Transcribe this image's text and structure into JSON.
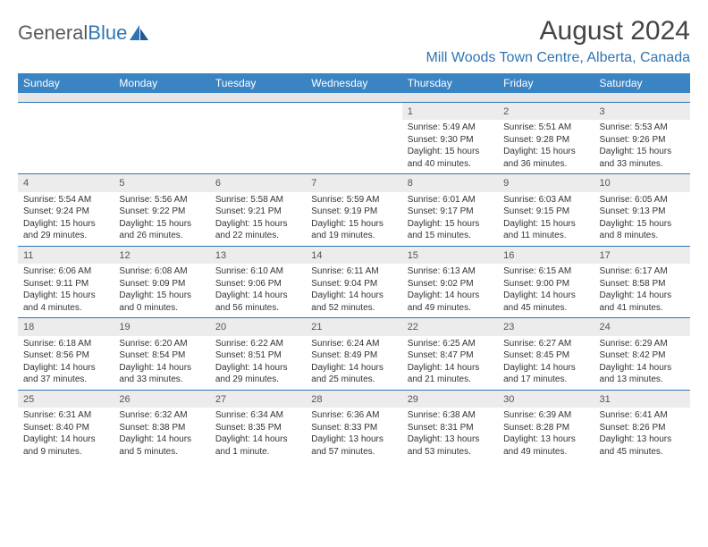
{
  "logo": {
    "text1": "General",
    "text2": "Blue"
  },
  "title": "August 2024",
  "location": "Mill Woods Town Centre, Alberta, Canada",
  "colors": {
    "header_bg": "#3b84c4",
    "accent": "#2f75b5",
    "num_bg": "#ececec",
    "spacer_bg": "#e6e6e6",
    "text": "#333333"
  },
  "dow": [
    "Sunday",
    "Monday",
    "Tuesday",
    "Wednesday",
    "Thursday",
    "Friday",
    "Saturday"
  ],
  "weeks": [
    [
      null,
      null,
      null,
      null,
      {
        "n": "1",
        "sr": "5:49 AM",
        "ss": "9:30 PM",
        "dl": "15 hours and 40 minutes."
      },
      {
        "n": "2",
        "sr": "5:51 AM",
        "ss": "9:28 PM",
        "dl": "15 hours and 36 minutes."
      },
      {
        "n": "3",
        "sr": "5:53 AM",
        "ss": "9:26 PM",
        "dl": "15 hours and 33 minutes."
      }
    ],
    [
      {
        "n": "4",
        "sr": "5:54 AM",
        "ss": "9:24 PM",
        "dl": "15 hours and 29 minutes."
      },
      {
        "n": "5",
        "sr": "5:56 AM",
        "ss": "9:22 PM",
        "dl": "15 hours and 26 minutes."
      },
      {
        "n": "6",
        "sr": "5:58 AM",
        "ss": "9:21 PM",
        "dl": "15 hours and 22 minutes."
      },
      {
        "n": "7",
        "sr": "5:59 AM",
        "ss": "9:19 PM",
        "dl": "15 hours and 19 minutes."
      },
      {
        "n": "8",
        "sr": "6:01 AM",
        "ss": "9:17 PM",
        "dl": "15 hours and 15 minutes."
      },
      {
        "n": "9",
        "sr": "6:03 AM",
        "ss": "9:15 PM",
        "dl": "15 hours and 11 minutes."
      },
      {
        "n": "10",
        "sr": "6:05 AM",
        "ss": "9:13 PM",
        "dl": "15 hours and 8 minutes."
      }
    ],
    [
      {
        "n": "11",
        "sr": "6:06 AM",
        "ss": "9:11 PM",
        "dl": "15 hours and 4 minutes."
      },
      {
        "n": "12",
        "sr": "6:08 AM",
        "ss": "9:09 PM",
        "dl": "15 hours and 0 minutes."
      },
      {
        "n": "13",
        "sr": "6:10 AM",
        "ss": "9:06 PM",
        "dl": "14 hours and 56 minutes."
      },
      {
        "n": "14",
        "sr": "6:11 AM",
        "ss": "9:04 PM",
        "dl": "14 hours and 52 minutes."
      },
      {
        "n": "15",
        "sr": "6:13 AM",
        "ss": "9:02 PM",
        "dl": "14 hours and 49 minutes."
      },
      {
        "n": "16",
        "sr": "6:15 AM",
        "ss": "9:00 PM",
        "dl": "14 hours and 45 minutes."
      },
      {
        "n": "17",
        "sr": "6:17 AM",
        "ss": "8:58 PM",
        "dl": "14 hours and 41 minutes."
      }
    ],
    [
      {
        "n": "18",
        "sr": "6:18 AM",
        "ss": "8:56 PM",
        "dl": "14 hours and 37 minutes."
      },
      {
        "n": "19",
        "sr": "6:20 AM",
        "ss": "8:54 PM",
        "dl": "14 hours and 33 minutes."
      },
      {
        "n": "20",
        "sr": "6:22 AM",
        "ss": "8:51 PM",
        "dl": "14 hours and 29 minutes."
      },
      {
        "n": "21",
        "sr": "6:24 AM",
        "ss": "8:49 PM",
        "dl": "14 hours and 25 minutes."
      },
      {
        "n": "22",
        "sr": "6:25 AM",
        "ss": "8:47 PM",
        "dl": "14 hours and 21 minutes."
      },
      {
        "n": "23",
        "sr": "6:27 AM",
        "ss": "8:45 PM",
        "dl": "14 hours and 17 minutes."
      },
      {
        "n": "24",
        "sr": "6:29 AM",
        "ss": "8:42 PM",
        "dl": "14 hours and 13 minutes."
      }
    ],
    [
      {
        "n": "25",
        "sr": "6:31 AM",
        "ss": "8:40 PM",
        "dl": "14 hours and 9 minutes."
      },
      {
        "n": "26",
        "sr": "6:32 AM",
        "ss": "8:38 PM",
        "dl": "14 hours and 5 minutes."
      },
      {
        "n": "27",
        "sr": "6:34 AM",
        "ss": "8:35 PM",
        "dl": "14 hours and 1 minute."
      },
      {
        "n": "28",
        "sr": "6:36 AM",
        "ss": "8:33 PM",
        "dl": "13 hours and 57 minutes."
      },
      {
        "n": "29",
        "sr": "6:38 AM",
        "ss": "8:31 PM",
        "dl": "13 hours and 53 minutes."
      },
      {
        "n": "30",
        "sr": "6:39 AM",
        "ss": "8:28 PM",
        "dl": "13 hours and 49 minutes."
      },
      {
        "n": "31",
        "sr": "6:41 AM",
        "ss": "8:26 PM",
        "dl": "13 hours and 45 minutes."
      }
    ]
  ]
}
